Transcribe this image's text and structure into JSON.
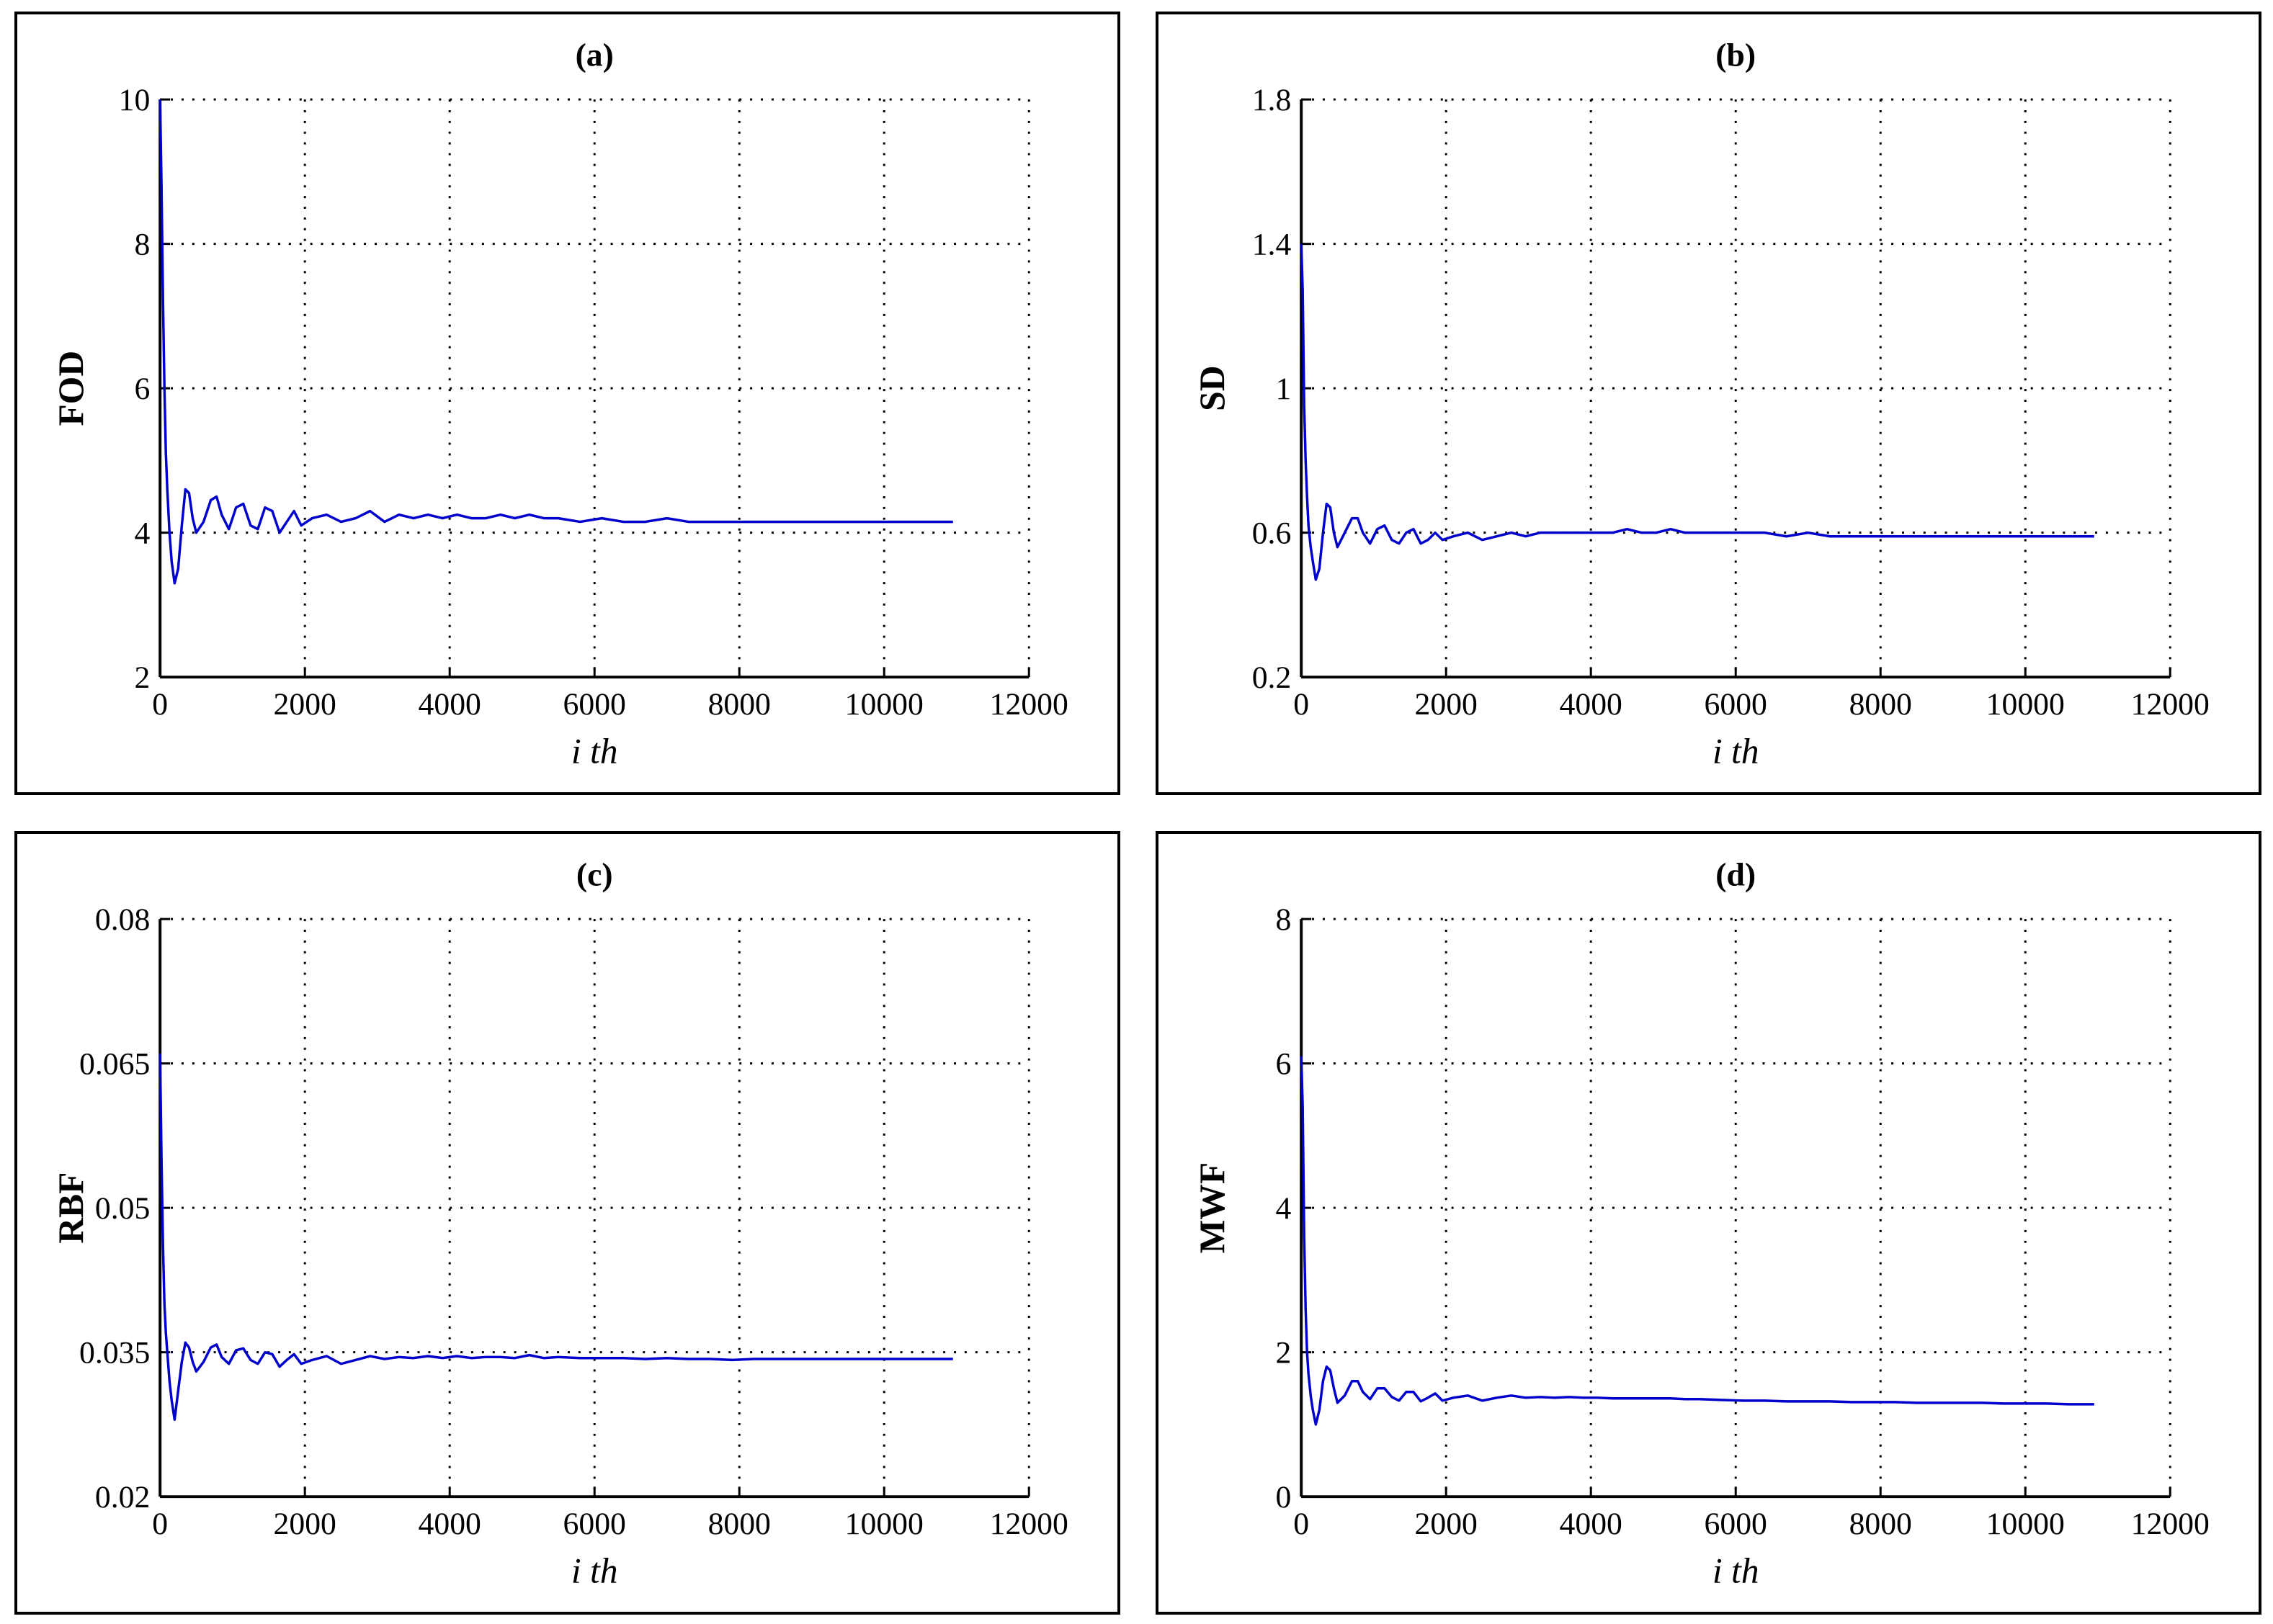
{
  "chart_data": [
    {
      "type": "line",
      "title": "(a)",
      "xlabel": "i th",
      "ylabel": "FOD",
      "xlim": [
        0,
        12000
      ],
      "ylim": [
        2,
        10
      ],
      "xticks": [
        0,
        2000,
        4000,
        6000,
        8000,
        10000,
        12000
      ],
      "yticks": [
        2,
        4,
        6,
        8,
        10
      ],
      "grid": true,
      "line_color": "#0000cc",
      "series": [
        {
          "x": [
            0,
            20,
            40,
            60,
            80,
            100,
            130,
            160,
            200,
            250,
            300,
            350,
            400,
            450,
            500,
            600,
            700,
            780,
            850,
            950,
            1050,
            1150,
            1250,
            1350,
            1450,
            1550,
            1650,
            1750,
            1850,
            1950,
            2100,
            2300,
            2500,
            2700,
            2900,
            3100,
            3300,
            3500,
            3700,
            3900,
            4100,
            4300,
            4500,
            4700,
            4900,
            5100,
            5300,
            5500,
            5800,
            6100,
            6400,
            6700,
            7000,
            7300,
            7600,
            7900,
            8200,
            8500,
            8800,
            9100,
            9400,
            9700,
            10000,
            10300,
            10600,
            10950
          ],
          "y": [
            10,
            8.8,
            7.2,
            6,
            5.1,
            4.6,
            4.0,
            3.6,
            3.3,
            3.5,
            4.1,
            4.6,
            4.55,
            4.2,
            4.0,
            4.15,
            4.45,
            4.5,
            4.25,
            4.05,
            4.35,
            4.4,
            4.1,
            4.05,
            4.35,
            4.3,
            4.0,
            4.15,
            4.3,
            4.1,
            4.2,
            4.25,
            4.15,
            4.2,
            4.3,
            4.15,
            4.25,
            4.2,
            4.25,
            4.2,
            4.25,
            4.2,
            4.2,
            4.25,
            4.2,
            4.25,
            4.2,
            4.2,
            4.15,
            4.2,
            4.15,
            4.15,
            4.2,
            4.15,
            4.15,
            4.15,
            4.15,
            4.15,
            4.15,
            4.15,
            4.15,
            4.15,
            4.15,
            4.15,
            4.15,
            4.15
          ]
        }
      ]
    },
    {
      "type": "line",
      "title": "(b)",
      "xlabel": "i th",
      "ylabel": "SD",
      "xlim": [
        0,
        12000
      ],
      "ylim": [
        0.2,
        1.8
      ],
      "xticks": [
        0,
        2000,
        4000,
        6000,
        8000,
        10000,
        12000
      ],
      "yticks": [
        0.2,
        0.6,
        1,
        1.4,
        1.8
      ],
      "grid": true,
      "line_color": "#0000cc",
      "series": [
        {
          "x": [
            0,
            20,
            40,
            60,
            80,
            100,
            130,
            160,
            200,
            250,
            300,
            350,
            400,
            450,
            500,
            600,
            700,
            780,
            850,
            950,
            1050,
            1150,
            1250,
            1350,
            1450,
            1550,
            1650,
            1750,
            1850,
            1950,
            2100,
            2300,
            2500,
            2700,
            2900,
            3100,
            3300,
            3500,
            3700,
            3900,
            4100,
            4300,
            4500,
            4700,
            4900,
            5100,
            5300,
            5500,
            5800,
            6100,
            6400,
            6700,
            7000,
            7300,
            7600,
            7900,
            8200,
            8500,
            8800,
            9100,
            9400,
            9700,
            10000,
            10300,
            10600,
            10950
          ],
          "y": [
            1.4,
            1.27,
            0.95,
            0.8,
            0.7,
            0.62,
            0.56,
            0.52,
            0.47,
            0.5,
            0.6,
            0.68,
            0.67,
            0.6,
            0.56,
            0.6,
            0.64,
            0.64,
            0.6,
            0.57,
            0.61,
            0.62,
            0.58,
            0.57,
            0.6,
            0.61,
            0.57,
            0.58,
            0.6,
            0.58,
            0.59,
            0.6,
            0.58,
            0.59,
            0.6,
            0.59,
            0.6,
            0.6,
            0.6,
            0.6,
            0.6,
            0.6,
            0.61,
            0.6,
            0.6,
            0.61,
            0.6,
            0.6,
            0.6,
            0.6,
            0.6,
            0.59,
            0.6,
            0.59,
            0.59,
            0.59,
            0.59,
            0.59,
            0.59,
            0.59,
            0.59,
            0.59,
            0.59,
            0.59,
            0.59,
            0.59
          ]
        }
      ]
    },
    {
      "type": "line",
      "title": "(c)",
      "xlabel": "i th",
      "ylabel": "RBF",
      "xlim": [
        0,
        12000
      ],
      "ylim": [
        0.02,
        0.08
      ],
      "xticks": [
        0,
        2000,
        4000,
        6000,
        8000,
        10000,
        12000
      ],
      "yticks": [
        0.02,
        0.035,
        0.05,
        0.065,
        0.08
      ],
      "ytick_labels": [
        "0.02",
        "0.035",
        "0.05",
        "0.065",
        "0.08"
      ],
      "grid": true,
      "line_color": "#0000cc",
      "series": [
        {
          "x": [
            0,
            20,
            40,
            60,
            80,
            100,
            130,
            160,
            200,
            250,
            300,
            350,
            400,
            450,
            500,
            600,
            700,
            780,
            850,
            950,
            1050,
            1150,
            1250,
            1350,
            1450,
            1550,
            1650,
            1750,
            1850,
            1950,
            2100,
            2300,
            2500,
            2700,
            2900,
            3100,
            3300,
            3500,
            3700,
            3900,
            4100,
            4300,
            4500,
            4700,
            4900,
            5100,
            5300,
            5500,
            5800,
            6100,
            6400,
            6700,
            7000,
            7300,
            7600,
            7900,
            8200,
            8500,
            8800,
            9100,
            9400,
            9700,
            10000,
            10300,
            10600,
            10950
          ],
          "y": [
            0.066,
            0.055,
            0.046,
            0.04,
            0.037,
            0.035,
            0.032,
            0.03,
            0.028,
            0.031,
            0.034,
            0.036,
            0.0355,
            0.034,
            0.033,
            0.034,
            0.0355,
            0.0358,
            0.0345,
            0.0338,
            0.0352,
            0.0354,
            0.0342,
            0.0338,
            0.035,
            0.0348,
            0.0335,
            0.0342,
            0.0348,
            0.0338,
            0.0342,
            0.0346,
            0.0338,
            0.0342,
            0.0346,
            0.0343,
            0.0345,
            0.0344,
            0.0346,
            0.0344,
            0.0346,
            0.0344,
            0.0345,
            0.0345,
            0.0344,
            0.0347,
            0.0344,
            0.0345,
            0.0344,
            0.0344,
            0.0344,
            0.0343,
            0.0344,
            0.0343,
            0.0343,
            0.0342,
            0.0343,
            0.0343,
            0.0343,
            0.0343,
            0.0343,
            0.0343,
            0.0343,
            0.0343,
            0.0343,
            0.0343
          ]
        }
      ]
    },
    {
      "type": "line",
      "title": "(d)",
      "xlabel": "i th",
      "ylabel": "MWF",
      "xlim": [
        0,
        12000
      ],
      "ylim": [
        0,
        8
      ],
      "xticks": [
        0,
        2000,
        4000,
        6000,
        8000,
        10000,
        12000
      ],
      "yticks": [
        0,
        2,
        4,
        6,
        8
      ],
      "grid": true,
      "line_color": "#0000cc",
      "series": [
        {
          "x": [
            0,
            20,
            40,
            60,
            80,
            100,
            130,
            160,
            200,
            250,
            300,
            350,
            400,
            450,
            500,
            600,
            700,
            780,
            850,
            950,
            1050,
            1150,
            1250,
            1350,
            1450,
            1550,
            1650,
            1750,
            1850,
            1950,
            2100,
            2300,
            2500,
            2700,
            2900,
            3100,
            3300,
            3500,
            3700,
            3900,
            4100,
            4300,
            4500,
            4700,
            4900,
            5100,
            5300,
            5500,
            5800,
            6100,
            6400,
            6700,
            7000,
            7300,
            7600,
            7900,
            8200,
            8500,
            8800,
            9100,
            9400,
            9700,
            10000,
            10300,
            10600,
            10950
          ],
          "y": [
            6.1,
            5.4,
            3.6,
            2.6,
            2.0,
            1.7,
            1.4,
            1.2,
            1.0,
            1.2,
            1.6,
            1.8,
            1.75,
            1.5,
            1.3,
            1.4,
            1.6,
            1.6,
            1.45,
            1.35,
            1.5,
            1.5,
            1.38,
            1.33,
            1.45,
            1.45,
            1.32,
            1.37,
            1.43,
            1.33,
            1.37,
            1.4,
            1.33,
            1.37,
            1.4,
            1.37,
            1.38,
            1.37,
            1.38,
            1.37,
            1.37,
            1.36,
            1.36,
            1.36,
            1.36,
            1.36,
            1.35,
            1.35,
            1.34,
            1.33,
            1.33,
            1.32,
            1.32,
            1.32,
            1.31,
            1.31,
            1.31,
            1.3,
            1.3,
            1.3,
            1.3,
            1.29,
            1.29,
            1.29,
            1.28,
            1.28
          ]
        }
      ]
    }
  ]
}
